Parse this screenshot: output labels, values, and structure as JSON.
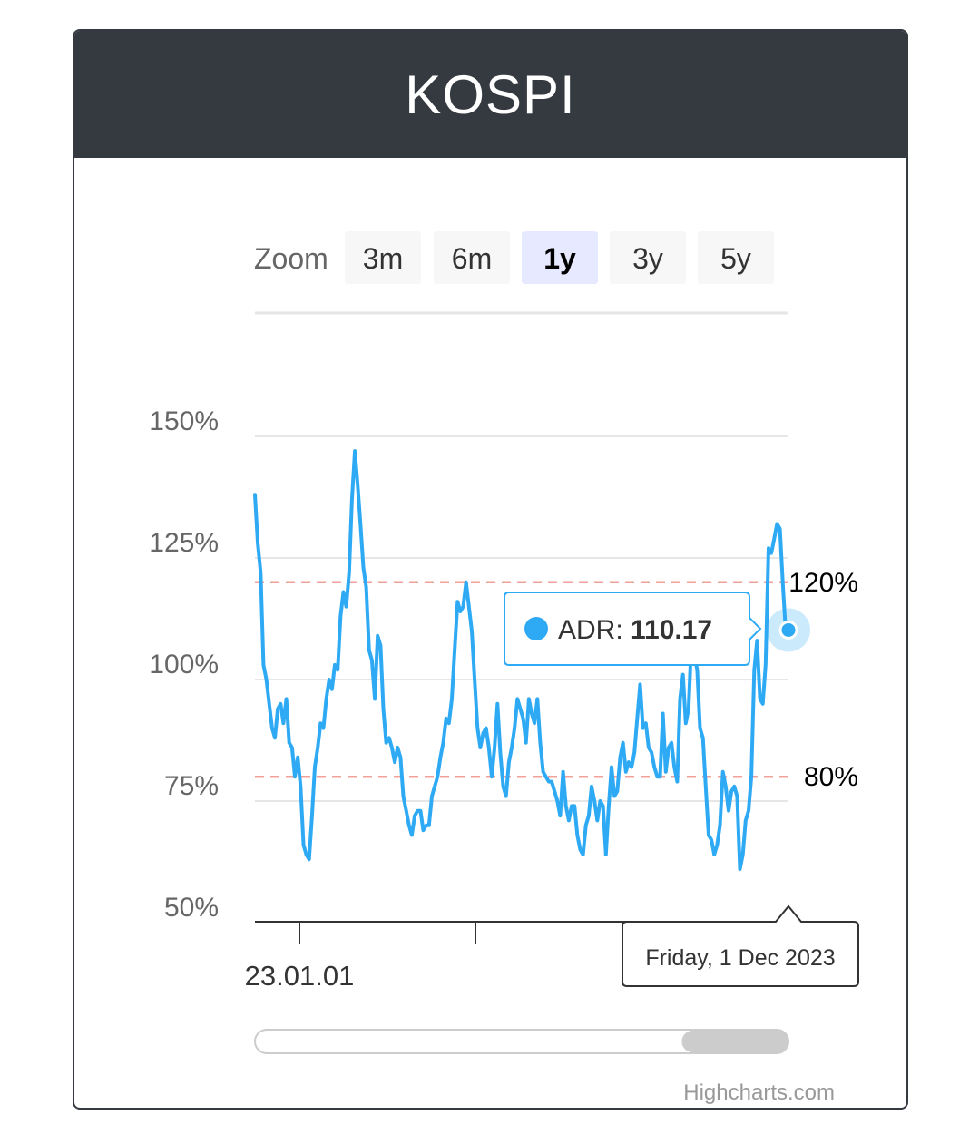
{
  "card": {
    "title": "KOSPI"
  },
  "zoom": {
    "label": "Zoom",
    "buttons": [
      "3m",
      "6m",
      "1y",
      "3y",
      "5y"
    ],
    "selected": "1y"
  },
  "colors": {
    "series": "#2eaaf5",
    "header": "#343a40",
    "plotline": "#f2a09a",
    "grid": "#e6e6e6"
  },
  "tooltip": {
    "series_name": "ADR",
    "value": "110.17"
  },
  "crosshair_date": "Friday, 1 Dec 2023",
  "navigator": {
    "range_start": 0.8,
    "range_end": 1.0
  },
  "credits": "Highcharts.com",
  "chart_data": {
    "type": "line",
    "series": [
      {
        "name": "ADR",
        "x_range": [
          "2022-12-01",
          "2023-12-01"
        ],
        "values": [
          138,
          128,
          122,
          103,
          100,
          95,
          90,
          88,
          94,
          95,
          91,
          96,
          87,
          86,
          80,
          84,
          78,
          66,
          64,
          63,
          72,
          82,
          86,
          91,
          90,
          96,
          100,
          98,
          103,
          102,
          113,
          118,
          115,
          122,
          137,
          147,
          140,
          132,
          123,
          119,
          106,
          104,
          96,
          109,
          107,
          94,
          87,
          88,
          86,
          83,
          86,
          84,
          76,
          73,
          70,
          68,
          72,
          73,
          73,
          69,
          70,
          70,
          76,
          78,
          80,
          84,
          87,
          92,
          91,
          96,
          106,
          116,
          114,
          115,
          120,
          115,
          110,
          100,
          90,
          86,
          89,
          90,
          86,
          80,
          86,
          95,
          85,
          78,
          76,
          83,
          86,
          90,
          96,
          94,
          92,
          87,
          96,
          93,
          91,
          96,
          87,
          81,
          80,
          79,
          79,
          77,
          75,
          72,
          81,
          74,
          71,
          74,
          74,
          68,
          65,
          64,
          70,
          72,
          78,
          75,
          71,
          75,
          74,
          64,
          74,
          82,
          76,
          77,
          84,
          87,
          81,
          83,
          82,
          85,
          92,
          99,
          90,
          91,
          86,
          85,
          82,
          80,
          80,
          93,
          81,
          86,
          87,
          82,
          79,
          96,
          101,
          91,
          94,
          108,
          105,
          102,
          90,
          88,
          78,
          68,
          67,
          64,
          66,
          70,
          81,
          78,
          73,
          77,
          78,
          76,
          61,
          64,
          71,
          73,
          80,
          102,
          108,
          96,
          95,
          103,
          127,
          126,
          129,
          132,
          131,
          120,
          110
        ],
        "last_value": 110.17
      }
    ],
    "y_ticks": [
      "50%",
      "75%",
      "100%",
      "125%",
      "150%"
    ],
    "ylim": [
      50,
      150
    ],
    "x_tick_labels": [
      "23.01.01"
    ],
    "plot_lines": [
      {
        "value": 120,
        "label": "120%"
      },
      {
        "value": 80,
        "label": "80%"
      }
    ],
    "grid": true,
    "legend": false
  }
}
